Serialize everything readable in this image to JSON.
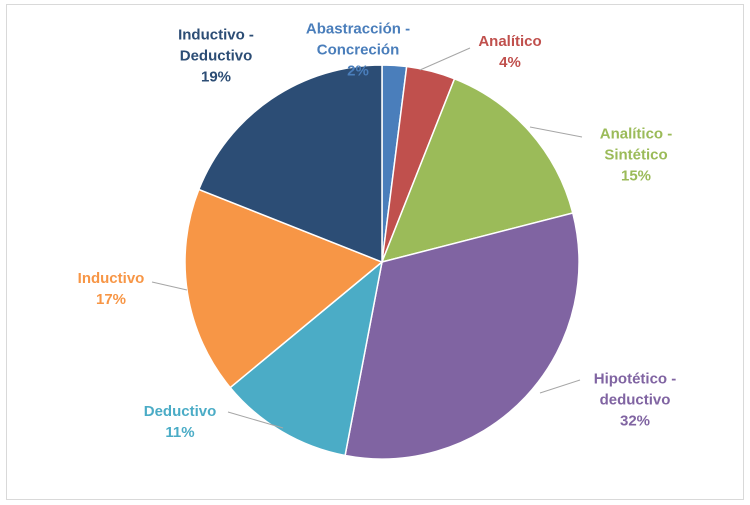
{
  "chart_data": {
    "type": "pie",
    "categories": [
      "Abastracción - Concreción",
      "Analítico",
      "Analítico - Sintético",
      "Hipotético - deductivo",
      "Deductivo",
      "Inductivo",
      "Inductivo - Deductivo"
    ],
    "values": [
      2,
      4,
      15,
      32,
      11,
      17,
      19
    ],
    "value_labels": [
      "2%",
      "4%",
      "15%",
      "32%",
      "11%",
      "17%",
      "19%"
    ],
    "colors": [
      "#4a7ebb",
      "#c0504d",
      "#9bbb59",
      "#8064a2",
      "#4bacc6",
      "#f79646",
      "#2c4d75"
    ]
  }
}
